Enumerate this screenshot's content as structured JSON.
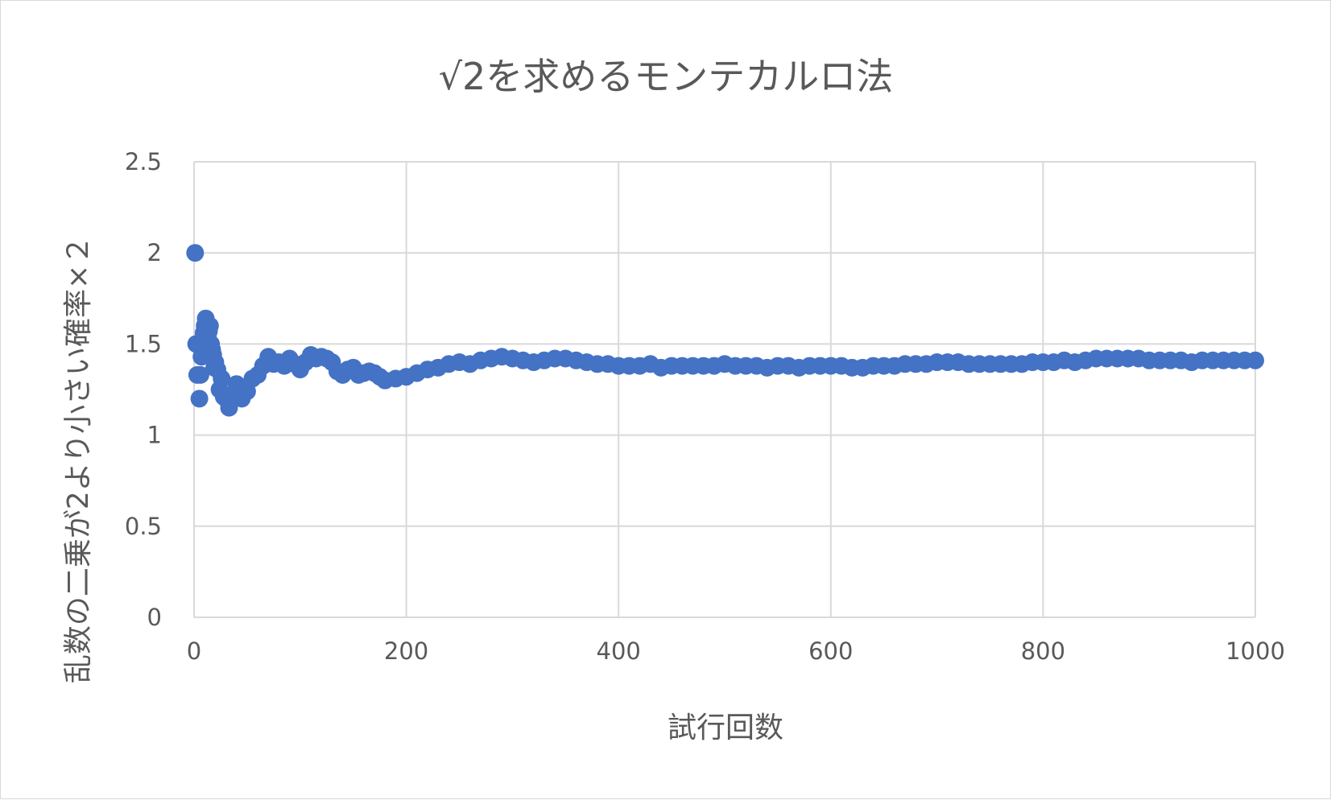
{
  "chart_data": {
    "type": "scatter",
    "title": "√2を求めるモンテカルロ法",
    "xlabel": "試行回数",
    "ylabel": "乱数の二乗が2より小さい確率×２",
    "xlim": [
      0,
      1000
    ],
    "ylim": [
      0,
      2.5
    ],
    "x_ticks": [
      "0",
      "200",
      "400",
      "600",
      "800",
      "1000"
    ],
    "y_ticks": [
      "0",
      "0.5",
      "1",
      "1.5",
      "2",
      "2.5"
    ],
    "grid": true,
    "legend": "none",
    "colors": {
      "series": "#4472c4",
      "grid": "#d9d9d9",
      "text": "#595959"
    },
    "series": [
      {
        "x": [
          1,
          2,
          3,
          4,
          5,
          6,
          7,
          8,
          9,
          10,
          11,
          12,
          13,
          14,
          15,
          16,
          17,
          18,
          19,
          20,
          22,
          24,
          26,
          28,
          30,
          33,
          36,
          40,
          45,
          50,
          55,
          60,
          65,
          70,
          75,
          80,
          85,
          90,
          95,
          100,
          105,
          110,
          115,
          120,
          125,
          130,
          135,
          140,
          145,
          150,
          155,
          160,
          165,
          170,
          175,
          180,
          190,
          200,
          210,
          220,
          230,
          240,
          250,
          260,
          270,
          280,
          290,
          300,
          310,
          320,
          330,
          340,
          350,
          360,
          370,
          380,
          390,
          400,
          410,
          420,
          430,
          440,
          450,
          460,
          470,
          480,
          490,
          500,
          510,
          520,
          530,
          540,
          550,
          560,
          570,
          580,
          590,
          600,
          610,
          620,
          630,
          640,
          650,
          660,
          670,
          680,
          690,
          700,
          710,
          720,
          730,
          740,
          750,
          760,
          770,
          780,
          790,
          800,
          810,
          820,
          830,
          840,
          850,
          860,
          870,
          880,
          890,
          900,
          910,
          920,
          930,
          940,
          950,
          960,
          970,
          980,
          990,
          1000
        ],
        "y": [
          2.0,
          1.5,
          1.33,
          1.5,
          1.2,
          1.33,
          1.43,
          1.5,
          1.56,
          1.6,
          1.64,
          1.58,
          1.54,
          1.57,
          1.6,
          1.5,
          1.47,
          1.44,
          1.37,
          1.4,
          1.36,
          1.25,
          1.31,
          1.21,
          1.2,
          1.15,
          1.22,
          1.28,
          1.2,
          1.24,
          1.31,
          1.33,
          1.38,
          1.43,
          1.39,
          1.4,
          1.38,
          1.42,
          1.39,
          1.36,
          1.4,
          1.44,
          1.42,
          1.43,
          1.42,
          1.4,
          1.35,
          1.33,
          1.36,
          1.37,
          1.33,
          1.34,
          1.35,
          1.34,
          1.32,
          1.3,
          1.31,
          1.32,
          1.34,
          1.36,
          1.37,
          1.39,
          1.4,
          1.39,
          1.41,
          1.42,
          1.43,
          1.42,
          1.41,
          1.4,
          1.41,
          1.42,
          1.42,
          1.41,
          1.4,
          1.39,
          1.39,
          1.38,
          1.38,
          1.38,
          1.39,
          1.37,
          1.38,
          1.38,
          1.38,
          1.38,
          1.38,
          1.39,
          1.38,
          1.38,
          1.38,
          1.37,
          1.38,
          1.38,
          1.37,
          1.38,
          1.38,
          1.38,
          1.38,
          1.37,
          1.37,
          1.38,
          1.38,
          1.38,
          1.39,
          1.39,
          1.39,
          1.4,
          1.4,
          1.4,
          1.39,
          1.39,
          1.39,
          1.39,
          1.39,
          1.39,
          1.4,
          1.4,
          1.4,
          1.41,
          1.4,
          1.41,
          1.42,
          1.42,
          1.42,
          1.42,
          1.42,
          1.41,
          1.41,
          1.41,
          1.41,
          1.4,
          1.41,
          1.41,
          1.41,
          1.41,
          1.41,
          1.41
        ]
      }
    ]
  }
}
